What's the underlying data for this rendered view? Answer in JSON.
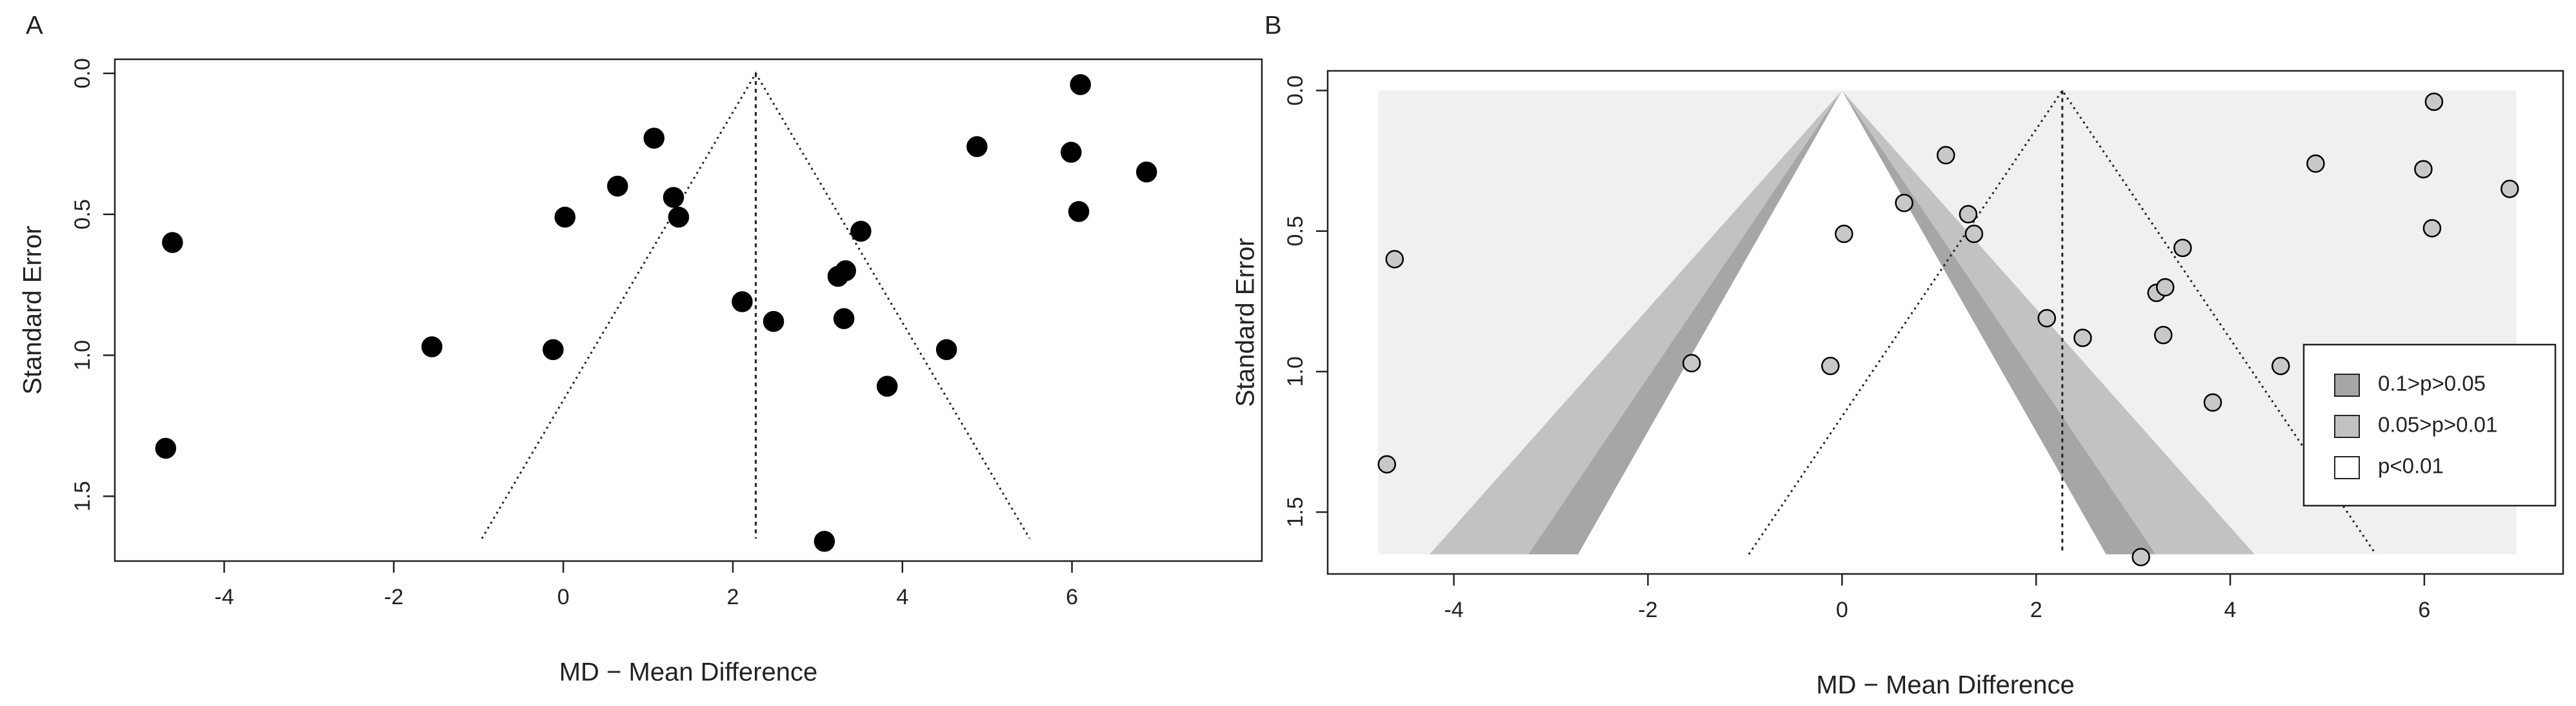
{
  "chart_data": [
    {
      "type": "scatter",
      "panel_label": "A",
      "x_label": "MD − Mean Difference",
      "y_label": "Standard Error",
      "x": [
        -4.61,
        -4.69,
        -1.55,
        -0.12,
        0.02,
        0.64,
        1.07,
        1.3,
        1.36,
        2.11,
        2.48,
        3.24,
        3.33,
        3.31,
        3.51,
        3.82,
        3.08,
        4.52,
        4.88,
        5.99,
        6.1,
        6.08,
        6.88
      ],
      "values": [
        0.6,
        1.33,
        0.97,
        0.98,
        0.51,
        0.4,
        0.23,
        0.44,
        0.51,
        0.81,
        0.88,
        0.72,
        0.7,
        0.87,
        0.56,
        1.11,
        1.66,
        0.98,
        0.26,
        0.28,
        0.04,
        0.49,
        0.35
      ],
      "color": "#000000",
      "xlim": [
        -5.29,
        8.24
      ],
      "ylim": [
        -0.05,
        1.73
      ],
      "y_inverted": true,
      "xticks": [
        -4,
        -2,
        0,
        2,
        4,
        6
      ],
      "yticks": [
        {
          "value": 0,
          "label": "0.0"
        },
        0.5,
        {
          "value": 1,
          "label": "1.0"
        },
        1.5
      ],
      "reference_line": 2.27,
      "funnel_bottom": {
        "se": 1.65,
        "left": -0.96,
        "right": 5.5
      }
    },
    {
      "type": "contour-funnel",
      "panel_label": "B",
      "x_label": "MD − Mean Difference",
      "y_label": "Standard Error",
      "x": [
        -4.61,
        -4.69,
        -1.55,
        -0.12,
        0.02,
        0.64,
        1.07,
        1.3,
        1.36,
        2.11,
        2.48,
        3.24,
        3.33,
        3.31,
        3.51,
        3.82,
        3.08,
        4.52,
        4.88,
        5.99,
        6.1,
        6.08,
        6.88
      ],
      "values": [
        0.6,
        1.33,
        0.97,
        0.98,
        0.51,
        0.4,
        0.23,
        0.44,
        0.51,
        0.81,
        0.88,
        0.72,
        0.7,
        0.87,
        0.56,
        1.11,
        1.66,
        0.98,
        0.26,
        0.28,
        0.04,
        0.49,
        0.35
      ],
      "color": "#c8c8c8",
      "xlim": [
        -5.3,
        7.43
      ],
      "ylim": [
        -0.07,
        1.72
      ],
      "y_inverted": true,
      "xticks": [
        -4,
        -2,
        0,
        2,
        4,
        6
      ],
      "yticks": [
        {
          "value": 0,
          "label": "0.0"
        },
        0.5,
        {
          "value": 1,
          "label": "1.0"
        },
        1.5
      ],
      "reference_line": 2.27,
      "funnel_bottom": {
        "se": 1.65,
        "left": -0.96,
        "right": 5.5
      },
      "background": {
        "color": "#f0f0f0",
        "x": [
          -4.78,
          6.95
        ]
      },
      "contour_center": 0,
      "contour_se": 1.65,
      "contours": [
        {
          "name": "0.1>p>0.05",
          "color": "#a6a6a6",
          "half_width": 3.23
        },
        {
          "name": "0.05>p>0.01",
          "color": "#c2c2c2",
          "half_width": 4.25
        },
        {
          "name": "p<0.01",
          "color": "#ffffff",
          "half_width": 2.72
        }
      ],
      "legend": "right"
    }
  ]
}
